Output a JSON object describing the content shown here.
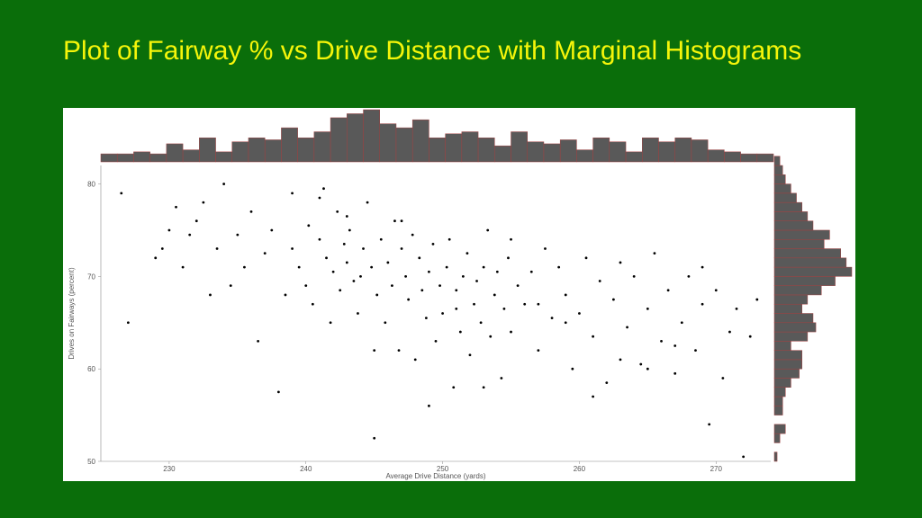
{
  "title": "Plot of Fairway % vs Drive Distance with Marginal Histograms",
  "slide": {
    "background_color": "#0a6e0a",
    "title_color": "#f5f50a"
  },
  "chart": {
    "type": "scatter_with_marginal_histograms",
    "background_color": "#ffffff",
    "xlabel": "Average Drive Distance (yards)",
    "ylabel": "Drives on Fairways (percent)",
    "label_fontsize": 8,
    "xlim": [
      225,
      274
    ],
    "ylim": [
      50,
      82
    ],
    "xticks": [
      230,
      240,
      250,
      260,
      270
    ],
    "yticks": [
      50,
      60,
      70,
      80
    ],
    "point_color": "#000000",
    "point_radius": 1.4,
    "hist_fill": "#595959",
    "hist_stroke": "#a04040",
    "hist_stroke_width": 0.5,
    "top_hist": {
      "bin_start": 225,
      "bin_width": 1.2,
      "counts": [
        4,
        4,
        5,
        4,
        9,
        6,
        12,
        5,
        10,
        12,
        11,
        17,
        12,
        15,
        22,
        24,
        26,
        19,
        17,
        21,
        12,
        14,
        15,
        12,
        8,
        15,
        10,
        9,
        11,
        6,
        12,
        10,
        5,
        12,
        10,
        12,
        11,
        6,
        5,
        4,
        4
      ]
    },
    "right_hist": {
      "bin_start": 50,
      "bin_width": 1,
      "counts": [
        1,
        0,
        2,
        4,
        0,
        3,
        3,
        4,
        6,
        9,
        10,
        10,
        6,
        12,
        15,
        14,
        10,
        12,
        17,
        22,
        28,
        26,
        24,
        18,
        20,
        14,
        12,
        10,
        8,
        6,
        4,
        3,
        2
      ]
    },
    "scatter": [
      [
        226.5,
        79
      ],
      [
        227,
        65
      ],
      [
        229,
        72
      ],
      [
        229.5,
        73
      ],
      [
        230,
        75
      ],
      [
        230.5,
        77.5
      ],
      [
        231,
        71
      ],
      [
        231.5,
        74.5
      ],
      [
        232,
        76
      ],
      [
        232.5,
        78
      ],
      [
        233,
        68
      ],
      [
        233.5,
        73
      ],
      [
        234,
        80
      ],
      [
        234.5,
        69
      ],
      [
        235,
        74.5
      ],
      [
        235.5,
        71
      ],
      [
        236,
        77
      ],
      [
        236.5,
        63
      ],
      [
        237,
        72.5
      ],
      [
        237.5,
        75
      ],
      [
        238,
        57.5
      ],
      [
        238.5,
        68
      ],
      [
        239,
        73
      ],
      [
        239.5,
        71
      ],
      [
        240,
        69
      ],
      [
        240.2,
        75.5
      ],
      [
        240.5,
        67
      ],
      [
        241,
        74
      ],
      [
        241.3,
        79.5
      ],
      [
        241.5,
        72
      ],
      [
        241.8,
        65
      ],
      [
        242,
        70.5
      ],
      [
        242.3,
        77
      ],
      [
        242.5,
        68.5
      ],
      [
        242.8,
        73.5
      ],
      [
        243,
        71.5
      ],
      [
        243.2,
        75
      ],
      [
        243.5,
        69.5
      ],
      [
        243.8,
        66
      ],
      [
        244,
        70
      ],
      [
        244.2,
        73
      ],
      [
        244.5,
        78
      ],
      [
        244.8,
        71
      ],
      [
        245,
        52.5
      ],
      [
        245.2,
        68
      ],
      [
        245.5,
        74
      ],
      [
        245.8,
        65
      ],
      [
        246,
        71.5
      ],
      [
        246.3,
        69
      ],
      [
        246.5,
        76
      ],
      [
        246.8,
        62
      ],
      [
        247,
        73
      ],
      [
        247.3,
        70
      ],
      [
        247.5,
        67.5
      ],
      [
        247.8,
        74.5
      ],
      [
        248,
        61
      ],
      [
        248.3,
        72
      ],
      [
        248.5,
        68.5
      ],
      [
        248.8,
        65.5
      ],
      [
        249,
        70.5
      ],
      [
        249.3,
        73.5
      ],
      [
        249.5,
        63
      ],
      [
        249.8,
        69
      ],
      [
        250,
        66
      ],
      [
        250.3,
        71
      ],
      [
        250.5,
        74
      ],
      [
        250.8,
        58
      ],
      [
        251,
        68.5
      ],
      [
        251.3,
        64
      ],
      [
        251.5,
        70
      ],
      [
        251.8,
        72.5
      ],
      [
        252,
        61.5
      ],
      [
        252.3,
        67
      ],
      [
        252.5,
        69.5
      ],
      [
        252.8,
        65
      ],
      [
        253,
        71
      ],
      [
        253.3,
        75
      ],
      [
        253.5,
        63.5
      ],
      [
        253.8,
        68
      ],
      [
        254,
        70.5
      ],
      [
        254.3,
        59
      ],
      [
        254.5,
        66.5
      ],
      [
        254.8,
        72
      ],
      [
        255,
        64
      ],
      [
        255.5,
        69
      ],
      [
        256,
        67
      ],
      [
        256.5,
        70.5
      ],
      [
        257,
        62
      ],
      [
        257.5,
        73
      ],
      [
        258,
        65.5
      ],
      [
        258.5,
        71
      ],
      [
        259,
        68
      ],
      [
        259.5,
        60
      ],
      [
        260,
        66
      ],
      [
        260.5,
        72
      ],
      [
        261,
        63.5
      ],
      [
        261.5,
        69.5
      ],
      [
        262,
        58.5
      ],
      [
        262.5,
        67.5
      ],
      [
        263,
        71.5
      ],
      [
        263.5,
        64.5
      ],
      [
        264,
        70
      ],
      [
        264.5,
        60.5
      ],
      [
        265,
        66.5
      ],
      [
        265.5,
        72.5
      ],
      [
        266,
        63
      ],
      [
        266.5,
        68.5
      ],
      [
        267,
        59.5
      ],
      [
        267.5,
        65
      ],
      [
        268,
        70
      ],
      [
        268.5,
        62
      ],
      [
        269,
        67
      ],
      [
        269.5,
        54
      ],
      [
        270,
        68.5
      ],
      [
        270.5,
        59
      ],
      [
        271,
        64
      ],
      [
        271.5,
        66.5
      ],
      [
        272,
        50.5
      ],
      [
        272.5,
        63.5
      ],
      [
        273,
        67.5
      ],
      [
        239,
        79
      ],
      [
        241,
        78.5
      ],
      [
        243,
        76.5
      ],
      [
        245,
        62
      ],
      [
        247,
        76
      ],
      [
        249,
        56
      ],
      [
        251,
        66.5
      ],
      [
        253,
        58
      ],
      [
        255,
        74
      ],
      [
        257,
        67
      ],
      [
        259,
        65
      ],
      [
        261,
        57
      ],
      [
        263,
        61
      ],
      [
        265,
        60
      ],
      [
        267,
        62.5
      ],
      [
        269,
        71
      ]
    ]
  }
}
